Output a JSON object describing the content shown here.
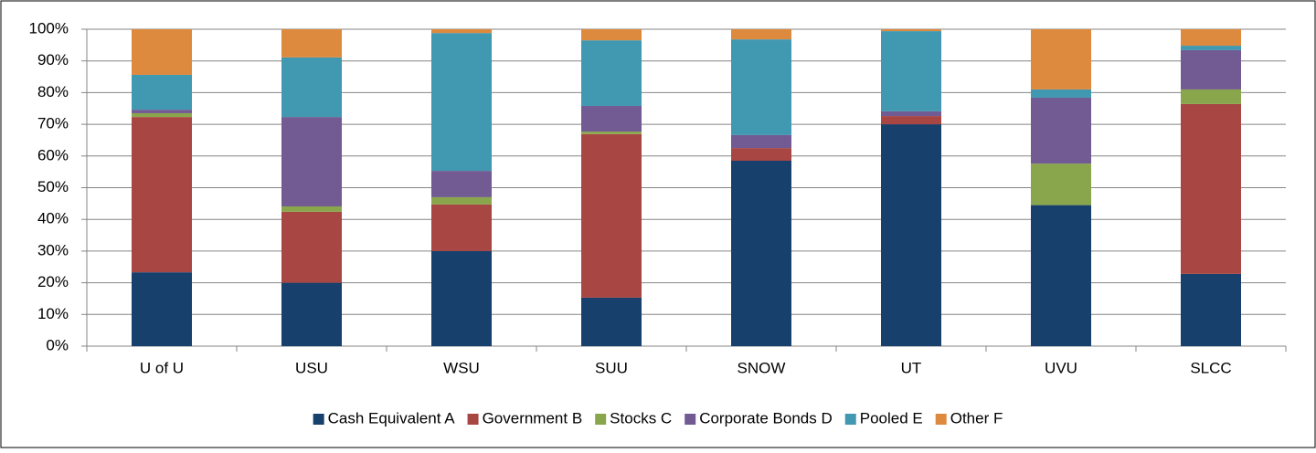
{
  "chart_data": {
    "type": "stacked_bar",
    "categories": [
      "U of U",
      "USU",
      "WSU",
      "SUU",
      "SNOW",
      "UT",
      "UVU",
      "SLCC"
    ],
    "series": [
      {
        "name": "Cash Equivalent A",
        "color": "#17406d",
        "values": [
          23.3,
          20,
          30,
          15.3,
          58.5,
          70,
          44.5,
          22.8
        ]
      },
      {
        "name": "Government B",
        "color": "#a84643",
        "values": [
          49,
          22.4,
          14.7,
          51.6,
          4,
          2.6,
          0,
          53.6
        ]
      },
      {
        "name": "Stocks C",
        "color": "#8aa64c",
        "values": [
          1.2,
          1.7,
          2.3,
          0.8,
          0,
          0,
          13.1,
          4.6
        ]
      },
      {
        "name": "Corporate Bonds D",
        "color": "#725a92",
        "values": [
          1.1,
          28.2,
          8.3,
          8.1,
          4.1,
          1.5,
          20.8,
          12.4
        ]
      },
      {
        "name": "Pooled E",
        "color": "#4198b1",
        "values": [
          11,
          18.8,
          43.5,
          20.7,
          30.2,
          25.3,
          2.6,
          1.4
        ]
      },
      {
        "name": "Other F",
        "color": "#dd8a3f",
        "values": [
          14.4,
          8.9,
          1.2,
          3.5,
          3.2,
          0.6,
          19,
          5.2
        ]
      }
    ],
    "ylim": [
      0,
      100
    ],
    "yticks": [
      {
        "value": 0,
        "label": "0%"
      },
      {
        "value": 10,
        "label": "10%"
      },
      {
        "value": 20,
        "label": "20%"
      },
      {
        "value": 30,
        "label": "30%"
      },
      {
        "value": 40,
        "label": "40%"
      },
      {
        "value": 50,
        "label": "50%"
      },
      {
        "value": 60,
        "label": "60%"
      },
      {
        "value": 70,
        "label": "70%"
      },
      {
        "value": 80,
        "label": "80%"
      },
      {
        "value": 90,
        "label": "90%"
      },
      {
        "value": 100,
        "label": "100%"
      }
    ],
    "grid": true,
    "legend": "bottom"
  }
}
